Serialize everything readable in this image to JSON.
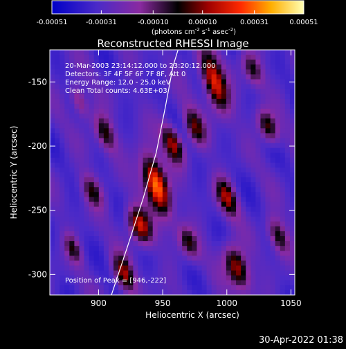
{
  "chart_data": {
    "type": "heatmap",
    "title": "Reconstructed RHESSI Image",
    "xlabel": "Heliocentric X (arcsec)",
    "ylabel": "Heliocentric Y (arcsec)",
    "xlim": [
      862,
      1053
    ],
    "ylim": [
      -316,
      -125
    ],
    "x_ticks": [
      900,
      950,
      1000,
      1050
    ],
    "y_ticks": [
      -150,
      -200,
      -250,
      -300
    ],
    "colorbar": {
      "ticks": [
        "-0.00051",
        "-0.00031",
        "-0.00010",
        "0.00010",
        "0.00031",
        "0.00051"
      ],
      "tick_values": [
        -0.00051,
        -0.00031,
        -0.0001,
        0.0001,
        0.00031,
        0.00051
      ],
      "range": [
        -0.00051,
        0.00051
      ],
      "units_prefix": "(photons cm",
      "units_sup1": "-2",
      "units_mid": " s",
      "units_sup2": "-1",
      "units_mid2": " asec",
      "units_sup3": "-2",
      "units_suffix": ")"
    },
    "annotations": {
      "time": "20-Mar-2003 23:14:12.000 to 23:20:12.000",
      "detectors": "Detectors: 3F 4F 5F 6F 7F 8F, Att 0",
      "energy": "Energy Range: 12.0 - 25.0 keV",
      "clean": "Clean     Total counts: 4.63E+03",
      "peak": "Position of Peak = [946,-222]"
    },
    "peak": {
      "x": 946,
      "y": -222
    },
    "limb": [
      [
        910,
        -316
      ],
      [
        922,
        -280
      ],
      [
        935,
        -240
      ],
      [
        945,
        -205
      ],
      [
        952,
        -170
      ],
      [
        958,
        -138
      ],
      [
        962,
        -125
      ]
    ],
    "sources": [
      {
        "x": 945,
        "y": -230,
        "sx": 6,
        "sy": 16,
        "amp": 1.0
      },
      {
        "x": 932,
        "y": -262,
        "sx": 6,
        "sy": 10,
        "amp": 0.75
      },
      {
        "x": 958,
        "y": -198,
        "sx": 5,
        "sy": 10,
        "amp": 0.65
      },
      {
        "x": 920,
        "y": -300,
        "sx": 5,
        "sy": 10,
        "amp": 0.6
      },
      {
        "x": 990,
        "y": -150,
        "sx": 6,
        "sy": 16,
        "amp": 0.8
      },
      {
        "x": 975,
        "y": -185,
        "sx": 5,
        "sy": 10,
        "amp": 0.5
      },
      {
        "x": 1000,
        "y": -240,
        "sx": 5,
        "sy": 10,
        "amp": 0.6
      },
      {
        "x": 1008,
        "y": -295,
        "sx": 6,
        "sy": 12,
        "amp": 0.7
      },
      {
        "x": 1032,
        "y": -185,
        "sx": 5,
        "sy": 9,
        "amp": 0.55
      },
      {
        "x": 1020,
        "y": -140,
        "sx": 5,
        "sy": 9,
        "amp": 0.45
      },
      {
        "x": 1040,
        "y": -270,
        "sx": 5,
        "sy": 10,
        "amp": 0.5
      },
      {
        "x": 905,
        "y": -190,
        "sx": 5,
        "sy": 10,
        "amp": 0.5
      },
      {
        "x": 895,
        "y": -235,
        "sx": 5,
        "sy": 9,
        "amp": 0.45
      },
      {
        "x": 880,
        "y": -280,
        "sx": 4,
        "sy": 8,
        "amp": 0.4
      },
      {
        "x": 885,
        "y": -165,
        "sx": 4,
        "sy": 9,
        "amp": 0.4
      },
      {
        "x": 970,
        "y": -275,
        "sx": 5,
        "sy": 9,
        "amp": 0.45
      }
    ]
  },
  "footer": {
    "date": "30-Apr-2022 01:38"
  }
}
